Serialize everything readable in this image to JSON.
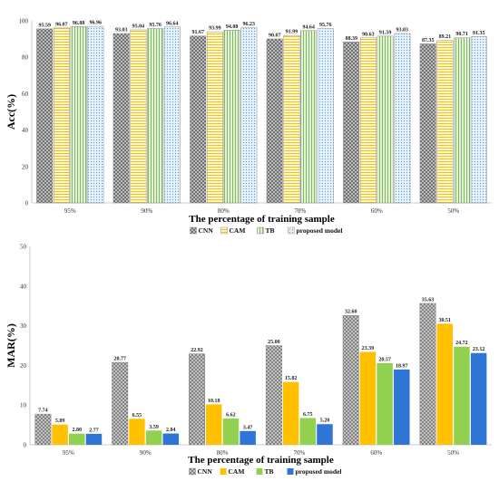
{
  "chart_data": [
    {
      "type": "bar",
      "xlabel": "The percentage of training sample",
      "ylabel": "Acc(%)",
      "ylim": [
        0,
        100
      ],
      "yticks": [
        "0",
        "20",
        "40",
        "60",
        "80",
        "100"
      ],
      "categories": [
        "95%",
        "90%",
        "80%",
        "70%",
        "60%",
        "50%"
      ],
      "series": [
        {
          "name": "CNN",
          "color": "#9a9a9a",
          "pattern": "crosshatch",
          "values": [
            95.59,
            93.03,
            91.67,
            90.07,
            88.39,
            87.35
          ],
          "labels": [
            "95.59",
            "93.03",
            "91.67",
            "90.07",
            "88.39",
            "87.35"
          ]
        },
        {
          "name": "CAM",
          "color": "#ffd966",
          "pattern": "horizontal",
          "values": [
            96.07,
            95.04,
            93.99,
            91.99,
            90.63,
            89.21
          ],
          "labels": [
            "96.07",
            "95.04",
            "93.99",
            "91.99",
            "90.63",
            "89.21"
          ]
        },
        {
          "name": "TB",
          "color": "#a9d18e",
          "pattern": "vertical",
          "values": [
            96.88,
            95.76,
            94.88,
            94.64,
            91.59,
            90.71
          ],
          "labels": [
            "96.88",
            "95.76",
            "94.88",
            "94.64",
            "91.59",
            "90.71"
          ]
        },
        {
          "name": "proposed model",
          "color": "#9dc3e6",
          "pattern": "dots",
          "values": [
            96.96,
            96.64,
            96.23,
            95.76,
            93.03,
            91.35
          ],
          "labels": [
            "96.96",
            "96.64",
            "96.23",
            "95.76",
            "93.03",
            "91.35"
          ]
        }
      ],
      "legend_position": "bottom",
      "grid": false
    },
    {
      "type": "bar",
      "xlabel": "The percentage of training sample",
      "ylabel": "MAR(%)",
      "ylim": [
        0,
        50
      ],
      "yticks": [
        "0",
        "10",
        "20",
        "30",
        "40",
        "50"
      ],
      "categories": [
        "95%",
        "90%",
        "80%",
        "70%",
        "60%",
        "50%"
      ],
      "series": [
        {
          "name": "CNN",
          "color": "#a6a6a6",
          "pattern": "crosshatch",
          "values": [
            7.74,
            20.77,
            22.92,
            25.0,
            32.6,
            35.63
          ],
          "labels": [
            "7.74",
            "20.77",
            "22.92",
            "25.00",
            "32.60",
            "35.63"
          ]
        },
        {
          "name": "CAM",
          "color": "#ffc000",
          "pattern": "solid",
          "values": [
            5.09,
            6.55,
            10.18,
            15.82,
            23.39,
            30.51
          ],
          "labels": [
            "5.09",
            "6.55",
            "10.18",
            "15.82",
            "23.39",
            "30.51"
          ]
        },
        {
          "name": "TB",
          "color": "#92d050",
          "pattern": "solid",
          "values": [
            2.8,
            3.59,
            6.62,
            6.75,
            20.57,
            24.72
          ],
          "labels": [
            "2.80",
            "3.59",
            "6.62",
            "6.75",
            "20.57",
            "24.72"
          ]
        },
        {
          "name": "proposed model",
          "color": "#2e75d6",
          "pattern": "solid",
          "values": [
            2.77,
            2.84,
            3.47,
            5.2,
            18.97,
            23.12
          ],
          "labels": [
            "2.77",
            "2.84",
            "3.47",
            "5.20",
            "18.97",
            "23.12"
          ]
        }
      ],
      "legend_position": "bottom",
      "grid": false
    }
  ]
}
